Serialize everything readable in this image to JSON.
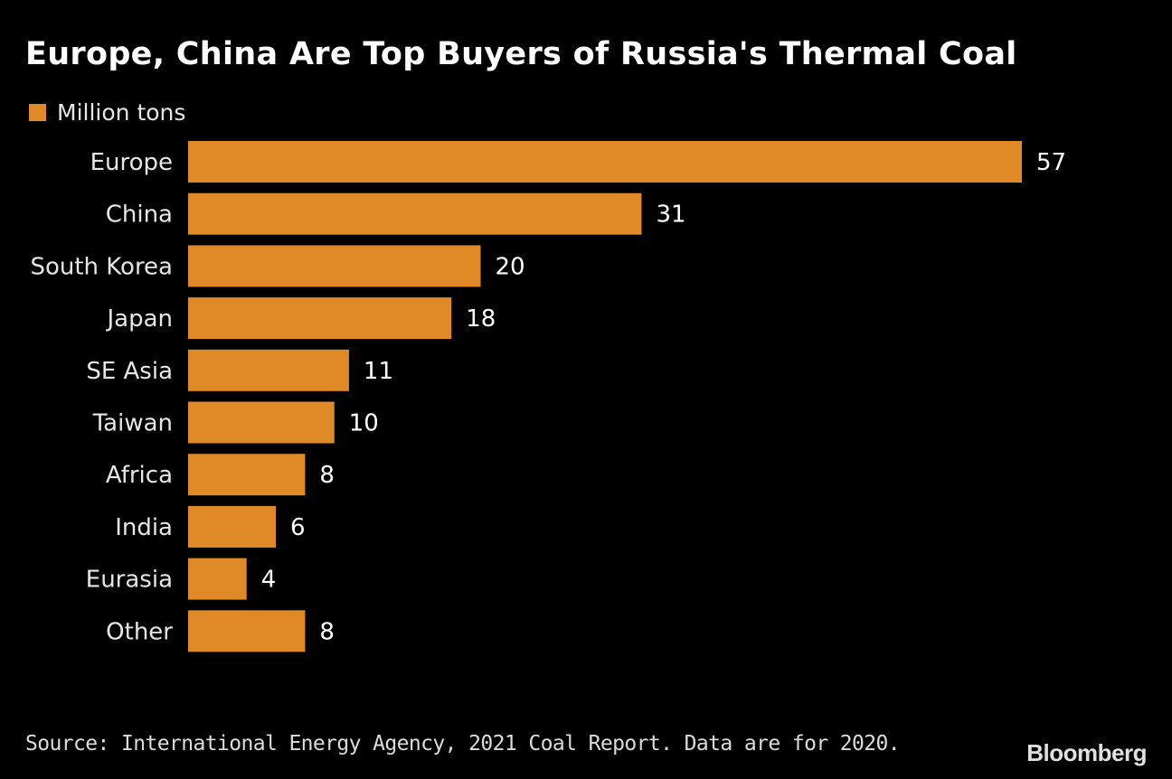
{
  "chart_data": {
    "type": "bar",
    "orientation": "horizontal",
    "title": "Europe, China Are Top Buyers of Russia's Thermal Coal",
    "categories": [
      "Europe",
      "China",
      "South Korea",
      "Japan",
      "SE Asia",
      "Taiwan",
      "Africa",
      "India",
      "Eurasia",
      "Other"
    ],
    "series": [
      {
        "name": "Million tons",
        "values": [
          57,
          31,
          20,
          18,
          11,
          10,
          8,
          6,
          4,
          8
        ]
      }
    ],
    "data_labels": true,
    "xlim": [
      0,
      57
    ],
    "grid": false,
    "legend_placement": "top-left",
    "colors": {
      "bar": "#DF8A26",
      "background": "#000000",
      "text": "#E6E6E6"
    }
  },
  "source": "Source: International Energy Agency, 2021 Coal Report. Data are for 2020.",
  "logo": "Bloomberg"
}
